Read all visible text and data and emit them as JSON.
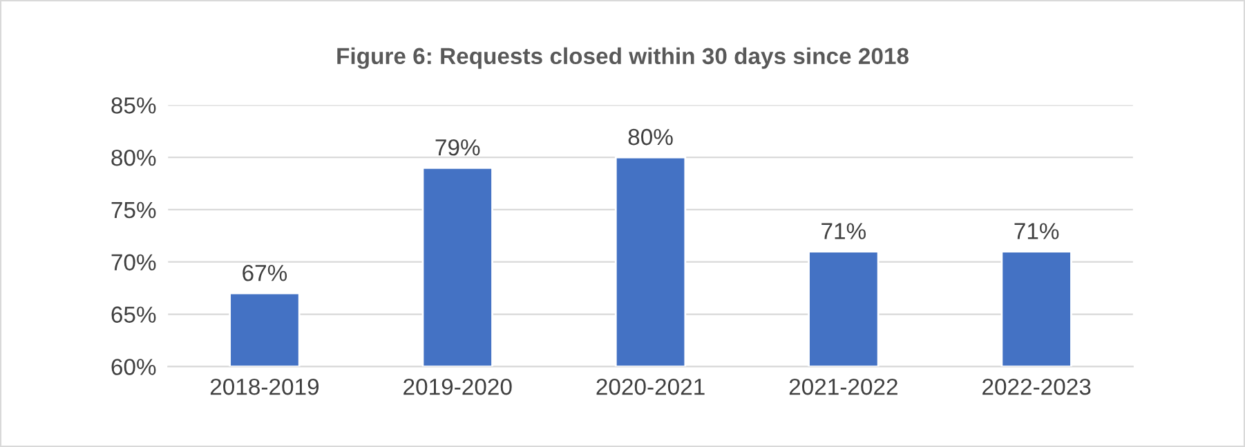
{
  "chart_data": {
    "type": "bar",
    "title": "Figure 6: Requests closed within 30 days since 2018",
    "categories": [
      "2018-2019",
      "2019-2020",
      "2020-2021",
      "2021-2022",
      "2022-2023"
    ],
    "values": [
      67,
      79,
      80,
      71,
      71
    ],
    "value_labels": [
      "67%",
      "79%",
      "80%",
      "71%",
      "71%"
    ],
    "color": "#4472c4",
    "ylim": [
      60,
      85
    ],
    "yticks": [
      {
        "value": 60,
        "label": "60%"
      },
      {
        "value": 65,
        "label": "65%"
      },
      {
        "value": 70,
        "label": "70%"
      },
      {
        "value": 75,
        "label": "75%"
      },
      {
        "value": 80,
        "label": "80%"
      },
      {
        "value": 85,
        "label": "85%"
      }
    ],
    "grid": "y",
    "legend": false
  }
}
